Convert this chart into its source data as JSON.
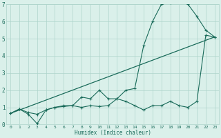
{
  "xlabel": "Humidex (Indice chaleur)",
  "xlim": [
    -0.5,
    23.5
  ],
  "ylim": [
    0,
    7
  ],
  "xticks": [
    0,
    1,
    2,
    3,
    4,
    5,
    6,
    7,
    8,
    9,
    10,
    11,
    12,
    13,
    14,
    15,
    16,
    17,
    18,
    19,
    20,
    21,
    22,
    23
  ],
  "yticks": [
    0,
    1,
    2,
    3,
    4,
    5,
    6,
    7
  ],
  "bg_color": "#daf0ea",
  "grid_color": "#aed4cb",
  "line_color": "#1a6b5a",
  "line1_x": [
    0,
    1,
    2,
    3,
    4,
    5,
    6,
    7,
    8,
    9,
    10,
    11,
    12,
    13,
    14,
    15,
    16,
    17,
    18,
    19,
    20,
    21,
    22,
    23
  ],
  "line1_y": [
    0.65,
    0.9,
    0.6,
    0.05,
    0.85,
    1.0,
    1.05,
    1.1,
    1.0,
    1.1,
    1.05,
    1.1,
    1.5,
    1.35,
    1.1,
    0.85,
    1.1,
    1.1,
    1.35,
    1.1,
    1.0,
    1.35,
    5.2,
    5.1
  ],
  "line2_x": [
    0,
    1,
    2,
    3,
    4,
    5,
    6,
    7,
    8,
    9,
    10,
    11,
    12,
    13,
    14,
    15,
    16,
    17,
    18,
    19,
    20,
    21,
    22,
    23
  ],
  "line2_y": [
    0.65,
    0.9,
    0.7,
    0.6,
    0.85,
    1.0,
    1.1,
    1.1,
    1.6,
    1.5,
    2.0,
    1.5,
    1.5,
    2.0,
    2.1,
    4.6,
    6.0,
    7.0,
    7.1,
    7.2,
    7.0,
    6.3,
    5.5,
    5.1
  ],
  "line3_x": [
    0,
    23
  ],
  "line3_y": [
    0.65,
    5.1
  ]
}
